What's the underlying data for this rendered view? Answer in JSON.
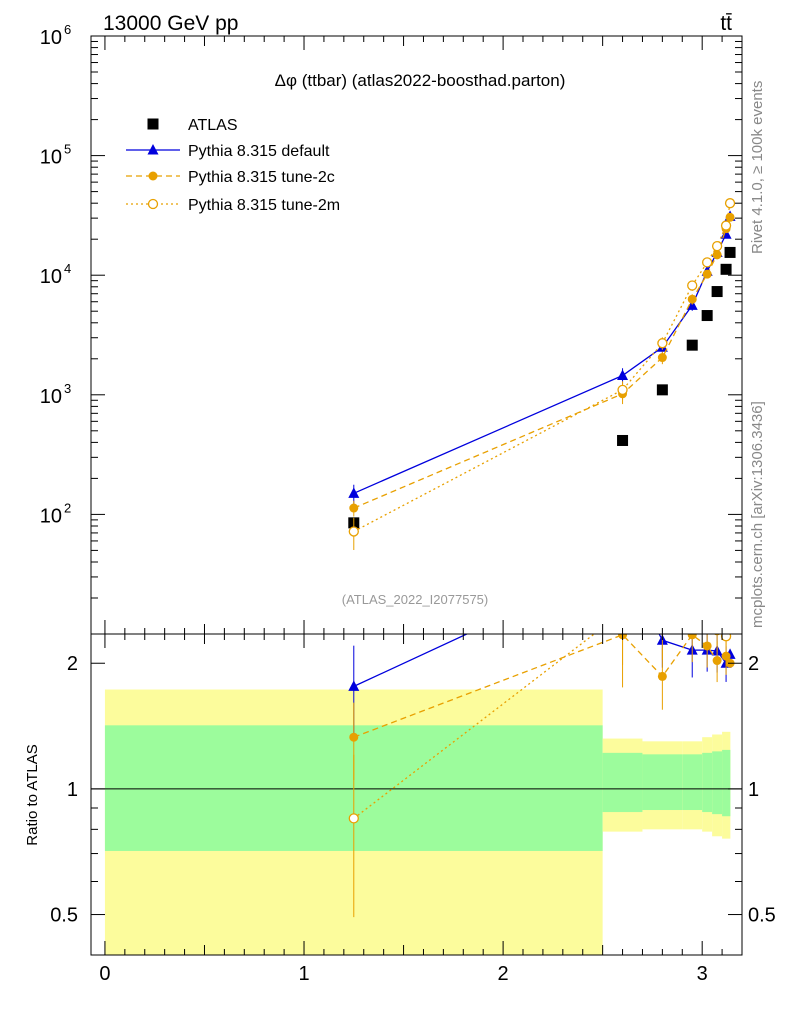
{
  "header": {
    "energy_label": "13000 GeV pp",
    "process_label": "tt̄"
  },
  "side_labels": {
    "rivet": "Rivet 4.1.0, ≥ 100k events",
    "mcplots": "mcplots.cern.ch [arXiv:1306.3436]"
  },
  "chart_data": {
    "type": "scatter",
    "title": "Δφ (ttbar) (atlas2022-boosthad.parton)",
    "analysis_id": "(ATLAS_2022_I2077575)",
    "xlabel": "",
    "xlim": [
      -0.07,
      3.2
    ],
    "x_ticks": [
      0,
      1,
      2,
      3
    ],
    "main": {
      "ylabel": "",
      "yscale": "log",
      "ylim": [
        10,
        1000000
      ],
      "y_ticks": [
        {
          "value": 100,
          "base": "10",
          "exp": "2"
        },
        {
          "value": 1000,
          "base": "10",
          "exp": "3"
        },
        {
          "value": 10000,
          "base": "10",
          "exp": "4"
        },
        {
          "value": 100000,
          "base": "10",
          "exp": "5"
        },
        {
          "value": 1000000,
          "base": "10",
          "exp": "6"
        }
      ]
    },
    "ratio": {
      "ylabel": "Ratio to ATLAS",
      "yscale": "log",
      "ylim": [
        0.4,
        2.35
      ],
      "y_ticks": [
        {
          "value": 0.5,
          "label": "0.5"
        },
        {
          "value": 1,
          "label": "1"
        },
        {
          "value": 2,
          "label": "2"
        }
      ],
      "bands": {
        "inner_color": "#9cfc9c",
        "outer_color": "#fcfc9c",
        "bins": [
          {
            "x": [
              0.0,
              2.5
            ],
            "inner": [
              0.71,
              1.42
            ],
            "outer": [
              0.4,
              1.73
            ]
          },
          {
            "x": [
              2.5,
              2.7
            ],
            "inner": [
              0.88,
              1.22
            ],
            "outer": [
              0.79,
              1.32
            ]
          },
          {
            "x": [
              2.7,
              2.9
            ],
            "inner": [
              0.89,
              1.21
            ],
            "outer": [
              0.8,
              1.3
            ]
          },
          {
            "x": [
              2.9,
              3.0
            ],
            "inner": [
              0.89,
              1.21
            ],
            "outer": [
              0.8,
              1.3
            ]
          },
          {
            "x": [
              3.0,
              3.05
            ],
            "inner": [
              0.88,
              1.22
            ],
            "outer": [
              0.79,
              1.33
            ]
          },
          {
            "x": [
              3.05,
              3.1
            ],
            "inner": [
              0.87,
              1.23
            ],
            "outer": [
              0.77,
              1.35
            ]
          },
          {
            "x": [
              3.1,
              3.1416
            ],
            "inner": [
              0.86,
              1.24
            ],
            "outer": [
              0.76,
              1.37
            ]
          }
        ]
      }
    },
    "x": [
      1.25,
      2.6,
      2.8,
      2.95,
      3.025,
      3.075,
      3.12
    ],
    "series": [
      {
        "name": "ATLAS",
        "color": "#000000",
        "marker": "square",
        "line": "none",
        "values": [
          85,
          415,
          1100,
          2600,
          4600,
          7300,
          11200
        ],
        "extra_points": [
          {
            "x": 3.14,
            "y": 15500
          }
        ],
        "ratio": []
      },
      {
        "name": "Pythia 8.315 default",
        "color": "#0000dd",
        "marker": "triangle",
        "line": "solid",
        "values": [
          150,
          1450,
          2500,
          5600,
          10800,
          15500,
          22000
        ],
        "extra_points": [
          {
            "x": 3.14,
            "y": 31000
          }
        ],
        "errors": [
          0.18,
          0.15,
          0.1,
          0.1,
          0.08,
          0.08,
          0.07
        ],
        "ratio": [
          1.76,
          3.5,
          2.27,
          2.15,
          2.15,
          2.14,
          2.0
        ],
        "ratio_extra": [
          {
            "x": 3.14,
            "y": 2.1
          }
        ]
      },
      {
        "name": "Pythia 8.315 tune-2c",
        "color": "#e8a000",
        "marker": "circle",
        "line": "dashed",
        "values": [
          113,
          1020,
          2050,
          6300,
          10200,
          14800,
          24500
        ],
        "extra_points": [
          {
            "x": 3.14,
            "y": 30500
          }
        ],
        "errors": [
          0.15,
          0.18,
          0.12,
          0.1,
          0.08,
          0.08,
          0.07
        ],
        "ratio": [
          1.33,
          2.34,
          1.86,
          2.34,
          2.2,
          2.03,
          2.08
        ],
        "ratio_extra": [
          {
            "x": 3.14,
            "y": 2.0
          }
        ]
      },
      {
        "name": "Pythia 8.315 tune-2m",
        "color": "#e8a000",
        "marker": "open-circle",
        "line": "dotted",
        "values": [
          72,
          1100,
          2700,
          8200,
          12800,
          17500,
          26000
        ],
        "extra_points": [
          {
            "x": 3.14,
            "y": 40000
          }
        ],
        "errors": [
          0.3,
          0.18,
          0.12,
          0.1,
          0.08,
          0.08,
          0.07
        ],
        "ratio": [
          0.85,
          2.65,
          2.45,
          3.15,
          2.78,
          2.4,
          2.32
        ],
        "ratio_extra": [
          {
            "x": 3.14,
            "y": 2.6
          }
        ]
      }
    ]
  }
}
